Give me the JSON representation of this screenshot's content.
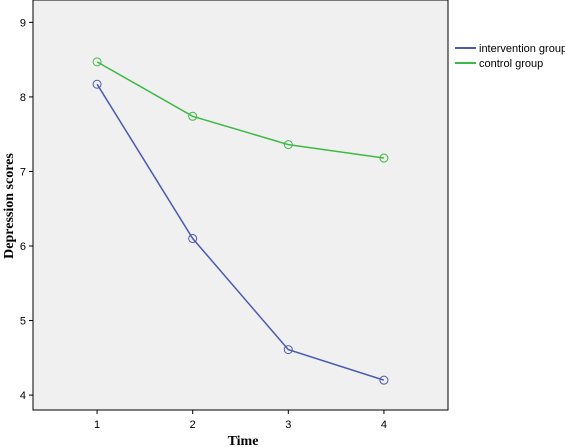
{
  "chart_data": {
    "type": "line",
    "title": "",
    "xlabel": "Time",
    "ylabel": "Depression scores",
    "x": [
      1,
      2,
      3,
      4
    ],
    "x_ticks": [
      "1",
      "2",
      "3",
      "4"
    ],
    "xlim": [
      0.33,
      4.67
    ],
    "ylim": [
      3.8,
      9.3
    ],
    "y_ticks": [
      4,
      5,
      6,
      7,
      8,
      9
    ],
    "grid": false,
    "legend_position": "top-right, outside plot area",
    "plot_background": "#f0f0f0",
    "series": [
      {
        "name": "intervention group",
        "color": "#4a5ab3",
        "values": [
          8.17,
          6.1,
          4.61,
          4.2
        ]
      },
      {
        "name": "control group",
        "color": "#3dba45",
        "values": [
          8.47,
          7.74,
          7.36,
          7.18
        ]
      }
    ]
  }
}
